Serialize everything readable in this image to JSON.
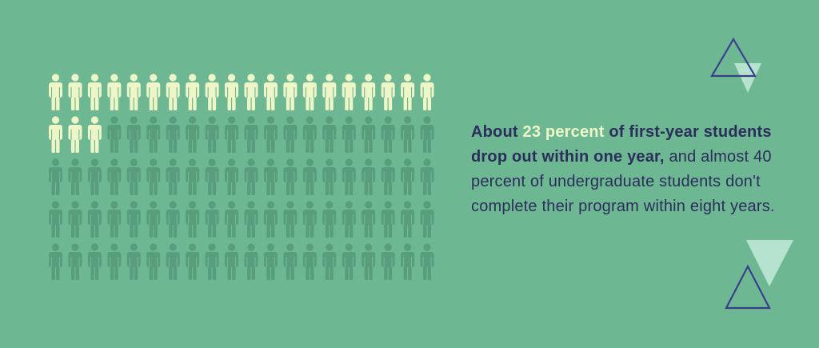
{
  "stat": {
    "highlighted_count": 23,
    "total_figures": 100,
    "rows": 5,
    "columns": 20
  },
  "colors": {
    "background": "#6db893",
    "figure_highlight": "#eef6c8",
    "figure_muted": "#589d7c",
    "text": "#2b2d5a",
    "text_highlight": "#eef6c8",
    "triangle_outline": "#3a3f8c",
    "triangle_fill": "#b6e2d0"
  },
  "icons": {
    "person": "person-icon",
    "triangle_outline": "triangle-outline-icon",
    "triangle_filled": "triangle-filled-icon"
  },
  "text": {
    "part1": "About ",
    "highlight": "23 percent",
    "part2": " of first-year students drop out within one year,",
    "part3": " and almost 40 percent of undergraduate students don't complete their program within eight years."
  }
}
